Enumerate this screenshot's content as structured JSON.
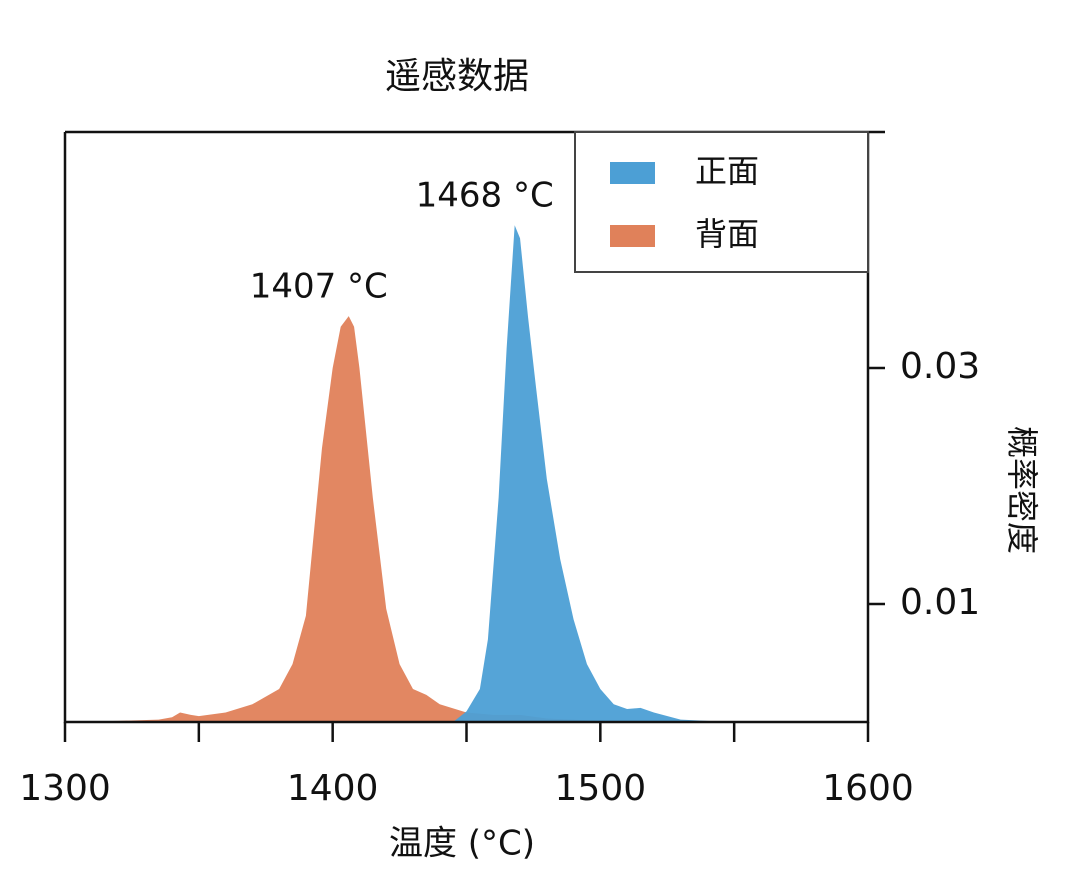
{
  "chart_data": {
    "type": "area",
    "title": "遥感数据",
    "xlabel": "温度 (°C)",
    "ylabel": "概率密度",
    "xlim": [
      1300,
      1600
    ],
    "xticks": [
      1300,
      1400,
      1500,
      1600
    ],
    "xticks_minor": [
      1350,
      1450,
      1550
    ],
    "ylim": [
      0,
      0.05
    ],
    "yticks": [
      0.01,
      0.03
    ],
    "y_axis_side": "right",
    "legend": "upper right",
    "series": [
      {
        "name": "正面",
        "color": "#4c9fd5",
        "x": [
          1445,
          1450,
          1455,
          1458,
          1462,
          1465,
          1468,
          1470,
          1473,
          1476,
          1480,
          1485,
          1490,
          1495,
          1500,
          1505,
          1510,
          1515,
          1520,
          1530,
          1540,
          1550
        ],
        "values": [
          0,
          0.0009,
          0.0028,
          0.007,
          0.019,
          0.0317,
          0.0421,
          0.041,
          0.0343,
          0.0283,
          0.0206,
          0.0138,
          0.0087,
          0.0049,
          0.0028,
          0.0015,
          0.0011,
          0.0012,
          0.0008,
          0.0002,
          0.0001,
          0
        ]
      },
      {
        "name": "背面",
        "color": "#e0815a",
        "x": [
          1300,
          1320,
          1335,
          1340,
          1343,
          1347,
          1350,
          1360,
          1370,
          1380,
          1385,
          1390,
          1396,
          1400,
          1403,
          1406,
          1408,
          1410,
          1415,
          1420,
          1425,
          1430,
          1435,
          1440,
          1450,
          1460,
          1470,
          1480,
          1500,
          1520
        ],
        "values": [
          0,
          0.0001,
          0.0002,
          0.0004,
          0.0008,
          0.0006,
          0.0005,
          0.0008,
          0.0015,
          0.0028,
          0.0049,
          0.009,
          0.0232,
          0.03,
          0.0335,
          0.0344,
          0.0335,
          0.03,
          0.019,
          0.0096,
          0.0049,
          0.0028,
          0.0023,
          0.0015,
          0.0008,
          0.0006,
          0.0006,
          0.0003,
          0.0001,
          0
        ]
      }
    ],
    "annotations": [
      "1468 °C",
      "1407 °C"
    ]
  }
}
